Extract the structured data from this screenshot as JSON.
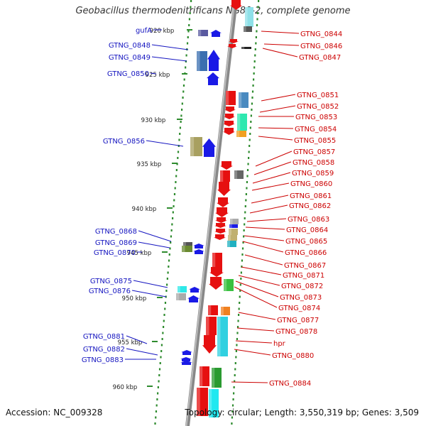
{
  "title": "Geobacillus thermodenitrificans NG80-2, complete genome",
  "footer": {
    "accession": "Accession: NC_009328",
    "topology": "Topology: circular; Length: 3,550,319 bp; Genes: 3,509"
  },
  "colors": {
    "left_label": "#1515c0",
    "right_label": "#cc0000",
    "forward_arrow": "#1a1ae6",
    "reverse_arrow": "#e61010",
    "axis": "#999999",
    "dots": "#2e8b2e"
  },
  "scale": {
    "ticks": [
      "920 kbp",
      "925 kbp",
      "930 kbp",
      "935 kbp",
      "940 kbp",
      "945 kbp",
      "950 kbp",
      "955 kbp",
      "960 kbp"
    ]
  },
  "left_genes": [
    "gufA",
    "GTNG_0848",
    "GTNG_0849",
    "GTNG_0850",
    "GTNG_0856",
    "GTNG_0868",
    "GTNG_0869",
    "GTNG_0870",
    "GTNG_0875",
    "GTNG_0876",
    "GTNG_0881",
    "GTNG_0882",
    "GTNG_0883"
  ],
  "right_genes": [
    "GTNG_0844",
    "GTNG_0846",
    "GTNG_0847",
    "GTNG_0851",
    "GTNG_0852",
    "GTNG_0853",
    "GTNG_0854",
    "GTNG_0855",
    "GTNG_0857",
    "GTNG_0858",
    "GTNG_0859",
    "GTNG_0860",
    "GTNG_0861",
    "GTNG_0862",
    "GTNG_0863",
    "GTNG_0864",
    "GTNG_0865",
    "GTNG_0866",
    "GTNG_0867",
    "GTNG_0871",
    "GTNG_0872",
    "GTNG_0873",
    "GTNG_0874",
    "GTNG_0877",
    "GTNG_0878",
    "hpr",
    "GTNG_0880",
    "GTNG_0884"
  ]
}
